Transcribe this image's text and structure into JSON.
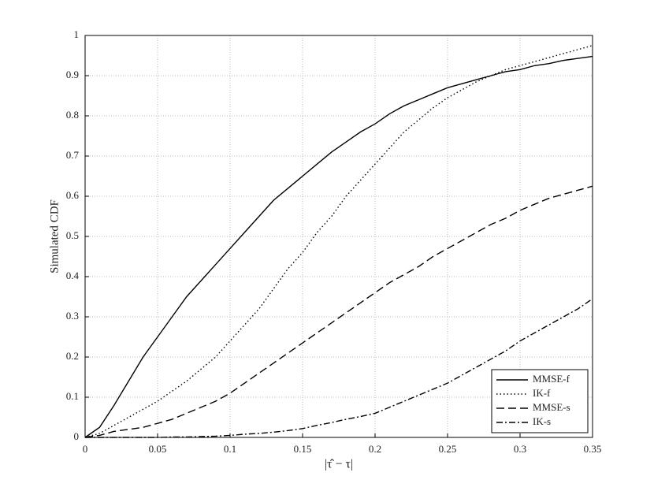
{
  "chart_data": {
    "type": "line",
    "xlabel": "|τ̂ − τ|",
    "ylabel": "Simulated CDF",
    "x": [
      0,
      0.01,
      0.02,
      0.03,
      0.04,
      0.05,
      0.06,
      0.07,
      0.08,
      0.09,
      0.1,
      0.11,
      0.12,
      0.13,
      0.14,
      0.15,
      0.16,
      0.17,
      0.18,
      0.19,
      0.2,
      0.21,
      0.22,
      0.23,
      0.24,
      0.25,
      0.26,
      0.27,
      0.28,
      0.29,
      0.3,
      0.31,
      0.32,
      0.33,
      0.34,
      0.35
    ],
    "series": [
      {
        "name": "MMSE-f",
        "color": "#000000",
        "dash": "solid",
        "values": [
          0,
          0.025,
          0.08,
          0.14,
          0.2,
          0.25,
          0.3,
          0.35,
          0.39,
          0.43,
          0.47,
          0.51,
          0.55,
          0.59,
          0.62,
          0.65,
          0.68,
          0.71,
          0.735,
          0.76,
          0.78,
          0.805,
          0.825,
          0.84,
          0.855,
          0.87,
          0.88,
          0.89,
          0.9,
          0.91,
          0.915,
          0.925,
          0.93,
          0.938,
          0.943,
          0.948
        ]
      },
      {
        "name": "IK-f",
        "color": "#000000",
        "dash": "dotted",
        "values": [
          0,
          0.01,
          0.03,
          0.05,
          0.07,
          0.09,
          0.115,
          0.14,
          0.17,
          0.2,
          0.24,
          0.28,
          0.32,
          0.37,
          0.42,
          0.46,
          0.51,
          0.55,
          0.6,
          0.64,
          0.68,
          0.72,
          0.76,
          0.79,
          0.82,
          0.845,
          0.865,
          0.885,
          0.9,
          0.915,
          0.925,
          0.935,
          0.945,
          0.955,
          0.965,
          0.975
        ]
      },
      {
        "name": "MMSE-s",
        "color": "#000000",
        "dash": "dashed",
        "values": [
          0,
          0.005,
          0.015,
          0.02,
          0.025,
          0.035,
          0.045,
          0.06,
          0.075,
          0.09,
          0.11,
          0.135,
          0.16,
          0.185,
          0.21,
          0.235,
          0.26,
          0.285,
          0.31,
          0.335,
          0.36,
          0.385,
          0.405,
          0.425,
          0.45,
          0.47,
          0.49,
          0.51,
          0.53,
          0.545,
          0.565,
          0.58,
          0.595,
          0.605,
          0.615,
          0.625
        ]
      },
      {
        "name": "IK-s",
        "color": "#000000",
        "dash": "dashdot",
        "values": [
          0,
          0,
          0,
          0,
          0,
          0,
          0.001,
          0.001,
          0.002,
          0.003,
          0.005,
          0.008,
          0.01,
          0.013,
          0.017,
          0.022,
          0.03,
          0.037,
          0.045,
          0.052,
          0.06,
          0.075,
          0.09,
          0.105,
          0.12,
          0.135,
          0.155,
          0.175,
          0.195,
          0.215,
          0.24,
          0.26,
          0.28,
          0.3,
          0.32,
          0.345
        ]
      }
    ],
    "xlim": [
      0,
      0.35
    ],
    "xticks": [
      0,
      0.05,
      0.1,
      0.15,
      0.2,
      0.25,
      0.3,
      0.35
    ],
    "ylim": [
      0,
      1
    ],
    "yticks": [
      0,
      0.1,
      0.2,
      0.3,
      0.4,
      0.5,
      0.6,
      0.7,
      0.8,
      0.9,
      1
    ],
    "grid": true,
    "legend": "lower right"
  }
}
